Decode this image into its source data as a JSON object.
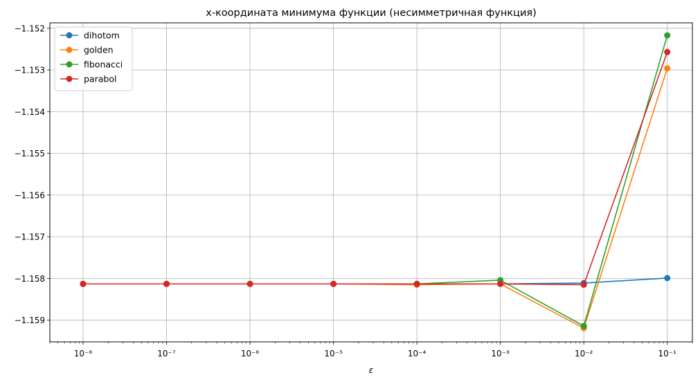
{
  "chart_data": {
    "type": "line",
    "title": "x-координата минимума функции (несимметричная функция)",
    "xlabel": "ε",
    "ylabel": "",
    "xscale": "log",
    "x": [
      1e-08,
      1e-07,
      1e-06,
      1e-05,
      0.0001,
      0.001,
      0.01,
      0.1
    ],
    "x_tick_labels": [
      "10⁻⁸",
      "10⁻⁷",
      "10⁻⁶",
      "10⁻⁵",
      "10⁻⁴",
      "10⁻³",
      "10⁻²",
      "10⁻¹"
    ],
    "xlim": [
      4e-09,
      0.2
    ],
    "ylim": [
      -1.15952,
      -1.15187
    ],
    "y_ticks": [
      -1.159,
      -1.158,
      -1.157,
      -1.156,
      -1.155,
      -1.154,
      -1.153,
      -1.152
    ],
    "y_tick_labels": [
      "−1.159",
      "−1.158",
      "−1.157",
      "−1.156",
      "−1.155",
      "−1.154",
      "−1.153",
      "−1.152"
    ],
    "grid": true,
    "legend_position": "top-left",
    "series": [
      {
        "name": "dihotom",
        "color": "#1f77b4",
        "values": [
          -1.15813,
          -1.15813,
          -1.15813,
          -1.15813,
          -1.15813,
          -1.15813,
          -1.15811,
          -1.15799
        ]
      },
      {
        "name": "golden",
        "color": "#ff7f0e",
        "values": [
          -1.15813,
          -1.15813,
          -1.15813,
          -1.15813,
          -1.15815,
          -1.15813,
          -1.15919,
          -1.15296
        ]
      },
      {
        "name": "fibonacci",
        "color": "#2ca02c",
        "values": [
          -1.15813,
          -1.15813,
          -1.15813,
          -1.15813,
          -1.15813,
          -1.15804,
          -1.15914,
          -1.15217
        ]
      },
      {
        "name": "parabol",
        "color": "#d62728",
        "values": [
          -1.15813,
          -1.15813,
          -1.15813,
          -1.15813,
          -1.15813,
          -1.15813,
          -1.15815,
          -1.15257
        ]
      }
    ]
  }
}
